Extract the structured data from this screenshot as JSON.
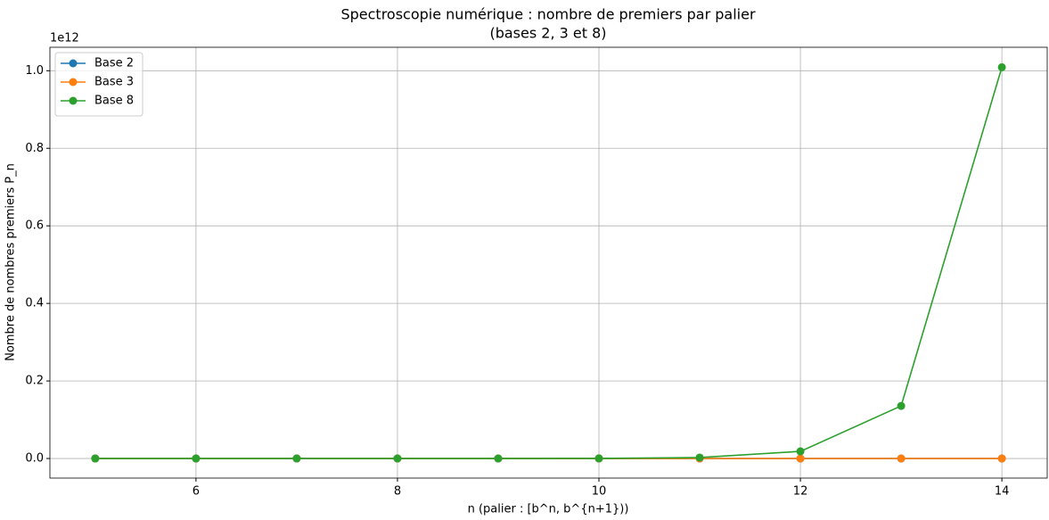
{
  "chart_data": {
    "type": "line",
    "title": [
      "Spectroscopie numérique : nombre de premiers par palier",
      "(bases 2, 3 et 8)"
    ],
    "x_label": "n (palier : [b^n, b^{n+1}))",
    "y_label": "Nombre de nombres premiers P_n",
    "y_offset_label": "1e12",
    "x": [
      5,
      6,
      7,
      8,
      9,
      10,
      11,
      12,
      13,
      14
    ],
    "series": [
      {
        "name": "Base 2",
        "color": "#1f77b4",
        "values": [
          7,
          13,
          23,
          43,
          75,
          137,
          255,
          464,
          872,
          1612
        ]
      },
      {
        "name": "Base 3",
        "color": "#ff7f0e",
        "values": [
          76,
          198,
          520,
          1377,
          3701,
          10058,
          27400,
          77000,
          214000,
          597000
        ]
      },
      {
        "name": "Base 8",
        "color": "#2ca02c",
        "values": [
          19488,
          132611,
          922260,
          6525682,
          46796475,
          339215778,
          2480000000,
          18400000000,
          135600000000,
          1009000000000
        ]
      }
    ],
    "xlim": [
      4.55,
      14.45
    ],
    "xticks": [
      6,
      8,
      10,
      12,
      14
    ],
    "ylim": [
      -50500000000,
      1060500000000
    ],
    "yticks": [
      {
        "value": 0,
        "label": "0.0"
      },
      {
        "value": 200000000000,
        "label": "0.2"
      },
      {
        "value": 400000000000,
        "label": "0.4"
      },
      {
        "value": 600000000000,
        "label": "0.6"
      },
      {
        "value": 800000000000,
        "label": "0.8"
      },
      {
        "value": 1000000000000,
        "label": "1.0"
      }
    ],
    "grid": true,
    "legend": "upper-left"
  }
}
